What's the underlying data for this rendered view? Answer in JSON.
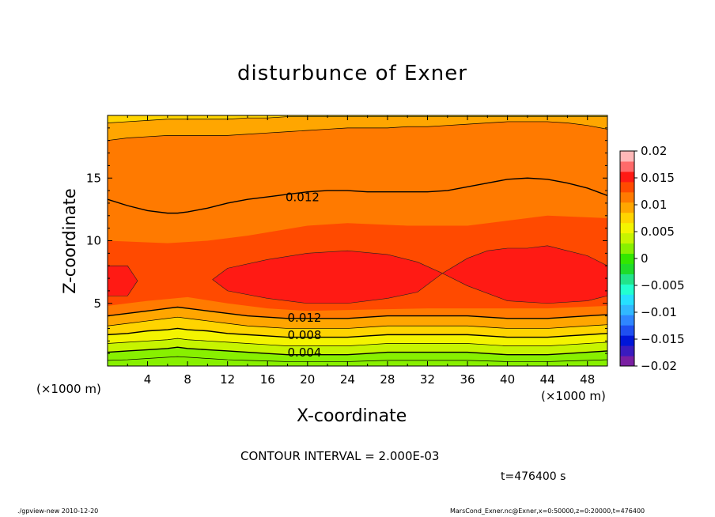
{
  "chart_data": {
    "type": "heatmap",
    "title": "disturbunce of Exner",
    "xlabel": "X-coordinate",
    "ylabel": "Z-coordinate",
    "x_unit_left": "(×1000 m)",
    "x_unit_right": "(×1000 m)",
    "xlim": [
      0,
      50
    ],
    "ylim": [
      0,
      20
    ],
    "x_ticks": [
      "4",
      "8",
      "12",
      "16",
      "20",
      "24",
      "28",
      "32",
      "36",
      "40",
      "44",
      "48"
    ],
    "y_ticks": [
      "5",
      "10",
      "15"
    ],
    "contour_interval_text": "CONTOUR INTERVAL = 2.000E-03",
    "time_text": "t=476400 s",
    "footer_left": "./gpview-new  2010-12-20",
    "footer_right": "MarsCond_Exner.nc@Exner,x=0:50000,z=0:20000,t=476400",
    "contour_labels": [
      {
        "text": "0.012",
        "x": 17.8,
        "z": 13.4
      },
      {
        "text": "0.012",
        "x": 18.0,
        "z": 3.8
      },
      {
        "text": "0.008",
        "x": 18.0,
        "z": 2.4
      },
      {
        "text": "0.004",
        "x": 18.0,
        "z": 1.0
      }
    ],
    "colorbar": {
      "tick_labels": [
        "0.02",
        "0.015",
        "0.01",
        "0.005",
        "0",
        "−0.005",
        "−0.01",
        "−0.015",
        "−0.02"
      ],
      "levels": [
        -0.02,
        -0.018,
        -0.016,
        -0.014,
        -0.012,
        -0.01,
        -0.008,
        -0.006,
        -0.004,
        -0.002,
        0,
        0.002,
        0.004,
        0.006,
        0.008,
        0.01,
        0.012,
        0.014,
        0.016,
        0.018,
        0.02
      ],
      "colors": [
        "#7a1fa2",
        "#3a1bbf",
        "#0016d8",
        "#1f4ff0",
        "#2f86ff",
        "#31b8ff",
        "#26e0ff",
        "#22ffd0",
        "#22e48a",
        "#1fdc2a",
        "#33e600",
        "#88f000",
        "#c7f400",
        "#f4f400",
        "#ffd400",
        "#ffa600",
        "#ff7a00",
        "#ff4a00",
        "#ff1a14",
        "#ff6a6a",
        "#ffb8b8"
      ]
    },
    "contour_lines_z": {
      "x": [
        0,
        2,
        4,
        6,
        7,
        8,
        10,
        12,
        14,
        16,
        18,
        20,
        22,
        24,
        26,
        28,
        30,
        32,
        34,
        36,
        38,
        40,
        42,
        44,
        46,
        48,
        50
      ],
      "upper_0.012": [
        13.3,
        12.8,
        12.4,
        12.2,
        12.2,
        12.3,
        12.6,
        13.0,
        13.3,
        13.5,
        13.7,
        13.9,
        14.0,
        14.0,
        13.9,
        13.9,
        13.9,
        13.9,
        14.0,
        14.3,
        14.6,
        14.9,
        15.0,
        14.9,
        14.6,
        14.2,
        13.6
      ],
      "lower_0.012": [
        4.0,
        4.2,
        4.4,
        4.6,
        4.7,
        4.6,
        4.4,
        4.2,
        4.0,
        3.9,
        3.8,
        3.8,
        3.8,
        3.8,
        3.9,
        4.0,
        4.0,
        4.0,
        4.0,
        4.0,
        3.9,
        3.8,
        3.8,
        3.8,
        3.9,
        4.0,
        4.1
      ],
      "level_0.010": [
        3.2,
        3.4,
        3.6,
        3.8,
        3.9,
        3.8,
        3.6,
        3.4,
        3.2,
        3.1,
        3.0,
        3.0,
        3.0,
        3.0,
        3.1,
        3.2,
        3.2,
        3.2,
        3.2,
        3.2,
        3.1,
        3.0,
        3.0,
        3.0,
        3.1,
        3.2,
        3.3
      ],
      "level_0.008": [
        2.5,
        2.6,
        2.8,
        2.9,
        3.0,
        2.9,
        2.8,
        2.6,
        2.5,
        2.4,
        2.3,
        2.3,
        2.3,
        2.3,
        2.4,
        2.5,
        2.5,
        2.5,
        2.5,
        2.5,
        2.4,
        2.3,
        2.3,
        2.3,
        2.4,
        2.5,
        2.6
      ],
      "level_0.006": [
        1.8,
        1.9,
        2.0,
        2.1,
        2.2,
        2.1,
        2.0,
        1.9,
        1.8,
        1.7,
        1.6,
        1.6,
        1.6,
        1.6,
        1.7,
        1.8,
        1.8,
        1.8,
        1.8,
        1.8,
        1.7,
        1.6,
        1.6,
        1.6,
        1.7,
        1.8,
        1.9
      ],
      "level_0.004": [
        1.1,
        1.2,
        1.3,
        1.4,
        1.5,
        1.4,
        1.3,
        1.2,
        1.1,
        1.0,
        0.9,
        0.9,
        0.9,
        0.9,
        1.0,
        1.1,
        1.1,
        1.1,
        1.1,
        1.1,
        1.0,
        0.9,
        0.9,
        0.9,
        1.0,
        1.1,
        1.2
      ],
      "level_0.002": [
        0.45,
        0.5,
        0.6,
        0.7,
        0.75,
        0.7,
        0.6,
        0.5,
        0.45,
        0.4,
        0.35,
        0.35,
        0.35,
        0.35,
        0.4,
        0.45,
        0.45,
        0.45,
        0.45,
        0.45,
        0.4,
        0.35,
        0.35,
        0.35,
        0.4,
        0.45,
        0.5
      ],
      "top_0.014": [
        18.0,
        18.2,
        18.3,
        18.4,
        18.4,
        18.4,
        18.4,
        18.4,
        18.5,
        18.6,
        18.7,
        18.8,
        18.9,
        19.0,
        19.0,
        19.0,
        19.1,
        19.1,
        19.2,
        19.3,
        19.4,
        19.5,
        19.5,
        19.5,
        19.4,
        19.2,
        18.9
      ],
      "top_0.012": [
        19.4,
        19.5,
        19.6,
        19.7,
        19.7,
        19.7,
        19.7,
        19.7,
        19.8,
        19.8,
        19.9,
        19.9,
        19.9,
        19.9,
        19.9,
        19.9,
        19.9,
        19.9,
        19.9,
        19.9,
        19.9,
        19.9,
        19.9,
        19.9,
        19.9,
        19.9,
        19.9
      ]
    }
  }
}
